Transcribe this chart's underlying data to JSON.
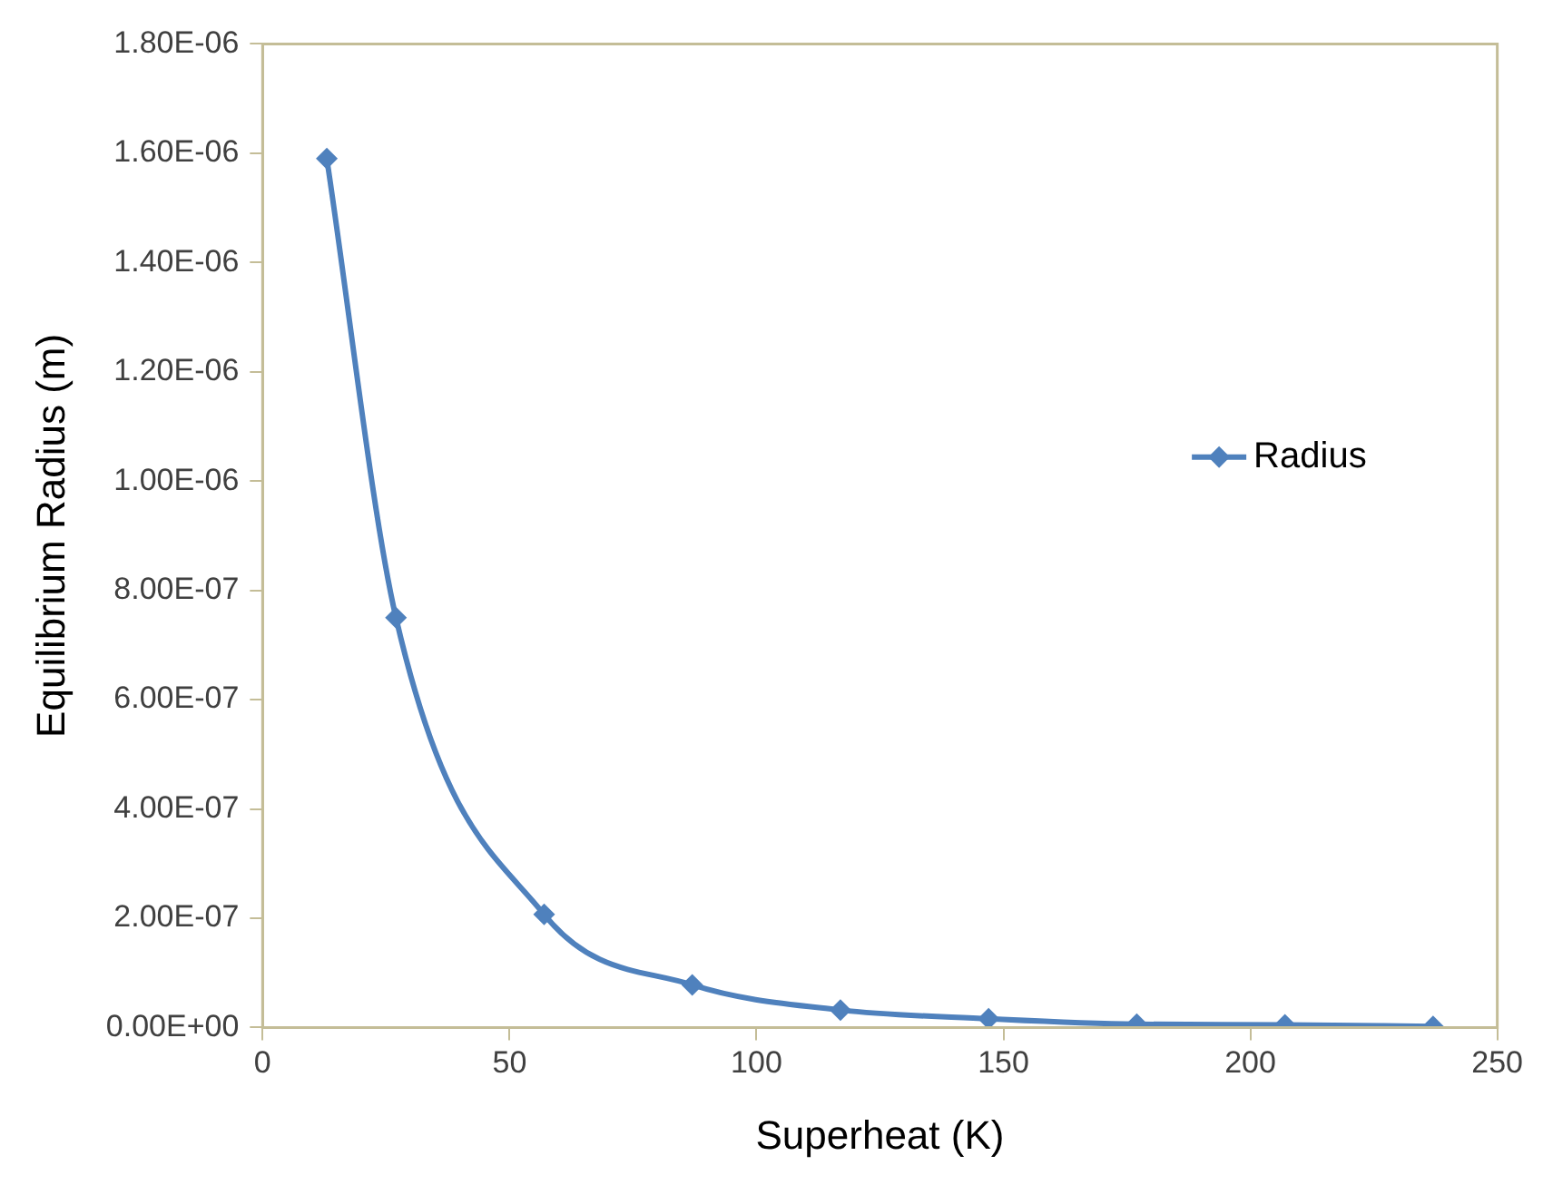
{
  "chart_data": {
    "type": "line",
    "xlabel": "Superheat (K)",
    "ylabel": "Equilibrium Radius (m)",
    "x": [
      13,
      27,
      57,
      87,
      117,
      147,
      177,
      207,
      237
    ],
    "series": [
      {
        "name": "Radius",
        "color": "#4f81bd",
        "values": [
          1.59e-06,
          7.5e-07,
          2.07e-07,
          7.8e-08,
          3.2e-08,
          1.6e-08,
          6e-09,
          5e-09,
          2e-09
        ]
      }
    ],
    "xlim": [
      0,
      250
    ],
    "xticks": [
      0,
      50,
      100,
      150,
      200,
      250
    ],
    "ylim": [
      0,
      1.8e-06
    ],
    "yticks": [
      {
        "value": 0,
        "label": "0.00E+00"
      },
      {
        "value": 2e-07,
        "label": "2.00E-07"
      },
      {
        "value": 4e-07,
        "label": "4.00E-07"
      },
      {
        "value": 6e-07,
        "label": "6.00E-07"
      },
      {
        "value": 8e-07,
        "label": "8.00E-07"
      },
      {
        "value": 1e-06,
        "label": "1.00E-06"
      },
      {
        "value": 1.2e-06,
        "label": "1.20E-06"
      },
      {
        "value": 1.4e-06,
        "label": "1.40E-06"
      },
      {
        "value": 1.6e-06,
        "label": "1.60E-06"
      },
      {
        "value": 1.8e-06,
        "label": "1.80E-06"
      }
    ],
    "grid": false,
    "legend": "right",
    "marker": "diamond",
    "line_style": "solid"
  }
}
